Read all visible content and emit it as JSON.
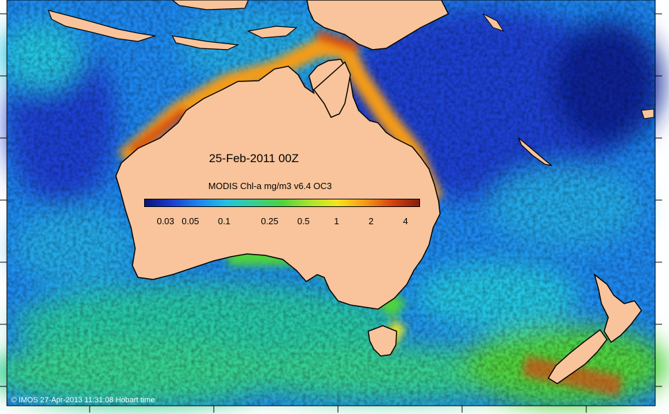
{
  "map": {
    "title": "25-Feb-2011 00Z",
    "colorbar": {
      "title": "MODIS Chl-a mg/m3 v6.4 OC3",
      "ticks": [
        "0.03",
        "0.05",
        "0.1",
        "0.25",
        "0.5",
        "1",
        "2",
        "4"
      ],
      "scale": "log",
      "colors": [
        "#08127a",
        "#1a3fd2",
        "#1d87ee",
        "#22c3e0",
        "#36cf8f",
        "#4fd33e",
        "#a8e52b",
        "#f3e61d",
        "#f59b16",
        "#d9420f",
        "#8a1d0a"
      ]
    },
    "credit": "© IMOS 27-Apr-2013 11:31:08 Hobart time",
    "colors": {
      "land": "#f9c49b",
      "coast": "#000000",
      "ocean_low": "#1a3fd2",
      "ocean_mid": "#1d87ee",
      "ocean_green": "#36cf8f",
      "ocean_high": "#d9420f"
    }
  }
}
